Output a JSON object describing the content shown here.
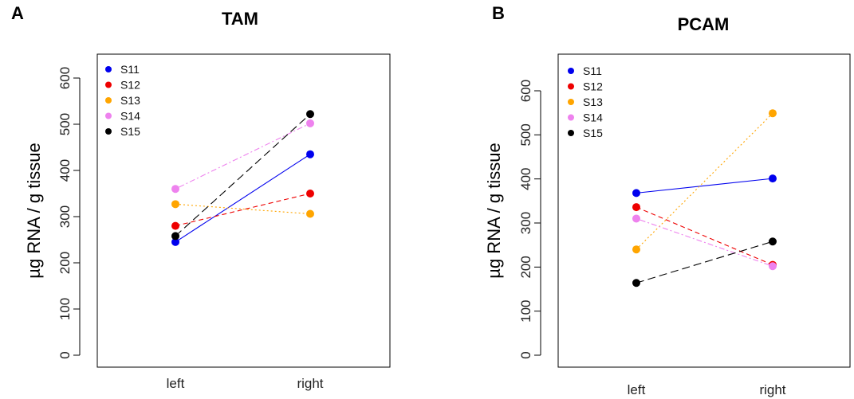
{
  "chart_data": [
    {
      "type": "line",
      "panel_label": "A",
      "title": "TAM",
      "xlabel": "",
      "ylabel": "µg RNA / g tissue",
      "categories": [
        "left",
        "right"
      ],
      "ylim": [
        0,
        600
      ],
      "yticks": [
        0,
        100,
        200,
        300,
        400,
        500,
        600
      ],
      "grid": false,
      "legend_position": "top-left",
      "series": [
        {
          "name": "S11",
          "color": "#0000ee",
          "dash": "solid",
          "values": [
            245,
            435
          ]
        },
        {
          "name": "S12",
          "color": "#ee0000",
          "dash": "dashed",
          "values": [
            280,
            350
          ]
        },
        {
          "name": "S13",
          "color": "#ffa500",
          "dash": "dotted",
          "values": [
            327,
            306
          ]
        },
        {
          "name": "S14",
          "color": "#ee82ee",
          "dash": "dotdash",
          "values": [
            360,
            502
          ]
        },
        {
          "name": "S15",
          "color": "#000000",
          "dash": "longdash",
          "values": [
            258,
            522
          ]
        }
      ]
    },
    {
      "type": "line",
      "panel_label": "B",
      "title": "PCAM",
      "xlabel": "",
      "ylabel": "µg RNA / g tissue",
      "categories": [
        "left",
        "right"
      ],
      "ylim": [
        0,
        600
      ],
      "yticks": [
        0,
        100,
        200,
        300,
        400,
        500,
        600
      ],
      "grid": false,
      "legend_position": "top-left",
      "series": [
        {
          "name": "S11",
          "color": "#0000ee",
          "dash": "solid",
          "values": [
            368,
            401
          ]
        },
        {
          "name": "S12",
          "color": "#ee0000",
          "dash": "dashed",
          "values": [
            336,
            205
          ]
        },
        {
          "name": "S13",
          "color": "#ffa500",
          "dash": "dotted",
          "values": [
            240,
            549
          ]
        },
        {
          "name": "S14",
          "color": "#ee82ee",
          "dash": "dotdash",
          "values": [
            310,
            202
          ]
        },
        {
          "name": "S15",
          "color": "#000000",
          "dash": "longdash",
          "values": [
            164,
            258
          ]
        }
      ]
    }
  ]
}
